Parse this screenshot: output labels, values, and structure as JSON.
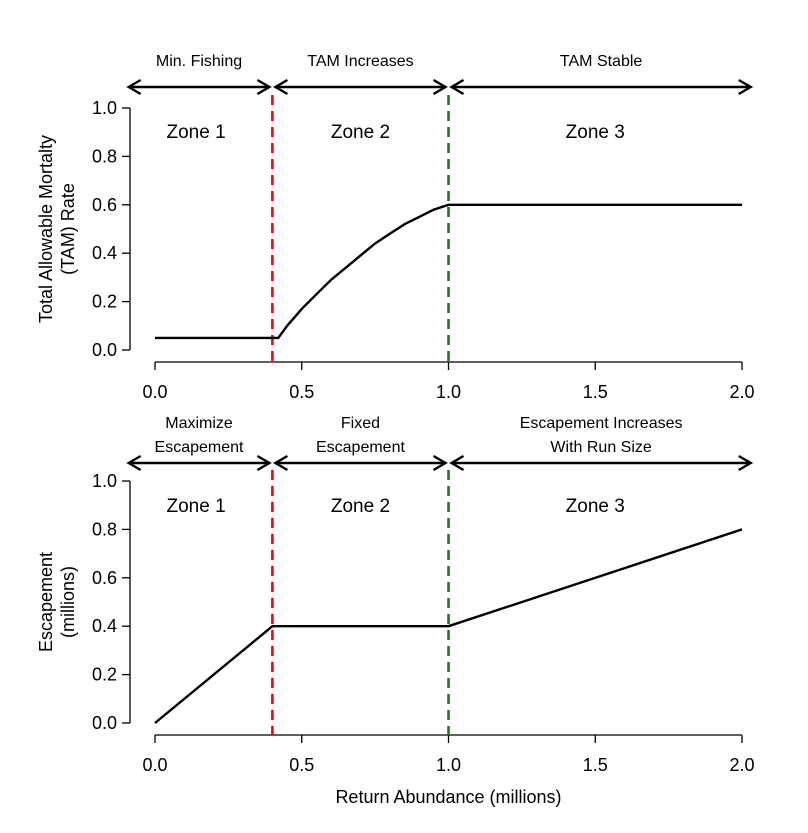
{
  "chart_data": [
    {
      "type": "line",
      "xlabel": "",
      "ylabel_lines": [
        "Total Allowable Mortalty",
        "(TAM) Rate"
      ],
      "xlim": [
        0,
        2
      ],
      "ylim": [
        0,
        1
      ],
      "x_ticks": [
        0,
        0.5,
        1,
        1.5,
        2
      ],
      "x_tick_labels": [
        "0.0",
        "0.5",
        "1.0",
        "1.5",
        "2.0"
      ],
      "y_ticks": [
        0,
        0.2,
        0.4,
        0.6,
        0.8,
        1
      ],
      "y_tick_labels": [
        "0.0",
        "0.2",
        "0.4",
        "0.6",
        "0.8",
        "1.0"
      ],
      "series": [
        {
          "x": [
            0,
            0.1,
            0.2,
            0.3,
            0.4,
            0.42,
            0.45,
            0.5,
            0.55,
            0.6,
            0.65,
            0.7,
            0.75,
            0.8,
            0.85,
            0.9,
            0.95,
            1.0,
            1.5,
            2.0
          ],
          "y": [
            0.05,
            0.05,
            0.05,
            0.05,
            0.05,
            0.05,
            0.1,
            0.17,
            0.23,
            0.29,
            0.34,
            0.39,
            0.44,
            0.48,
            0.52,
            0.55,
            0.58,
            0.6,
            0.6,
            0.6
          ]
        }
      ],
      "vlines": [
        {
          "x": 0.4,
          "color": "#ff0000"
        },
        {
          "x": 1.0,
          "color": "#1a7a1a"
        }
      ],
      "zones": [
        {
          "label": "Zone 1",
          "x": 0.14
        },
        {
          "label": "Zone 2",
          "x": 0.7
        },
        {
          "label": "Zone 3",
          "x": 1.5
        }
      ],
      "arrows": [
        {
          "from": -0.1,
          "to": 0.4,
          "label_lines": [
            "Min. Fishing"
          ]
        },
        {
          "from": 0.4,
          "to": 1.0,
          "label_lines": [
            "TAM Increases"
          ]
        },
        {
          "from": 1.0,
          "to": 2.04,
          "label_lines": [
            "TAM Stable"
          ]
        }
      ]
    },
    {
      "type": "line",
      "xlabel": "Return Abundance (millions)",
      "ylabel_lines": [
        "Escapement",
        "(millions)"
      ],
      "xlim": [
        0,
        2
      ],
      "ylim": [
        0,
        1
      ],
      "x_ticks": [
        0,
        0.5,
        1,
        1.5,
        2
      ],
      "x_tick_labels": [
        "0.0",
        "0.5",
        "1.0",
        "1.5",
        "2.0"
      ],
      "y_ticks": [
        0,
        0.2,
        0.4,
        0.6,
        0.8,
        1
      ],
      "y_tick_labels": [
        "0.0",
        "0.2",
        "0.4",
        "0.6",
        "0.8",
        "1.0"
      ],
      "series": [
        {
          "x": [
            0,
            0.4,
            1.0,
            2.0
          ],
          "y": [
            0,
            0.4,
            0.4,
            0.8
          ]
        }
      ],
      "vlines": [
        {
          "x": 0.4,
          "color": "#ff0000"
        },
        {
          "x": 1.0,
          "color": "#1a7a1a"
        }
      ],
      "zones": [
        {
          "label": "Zone 1",
          "x": 0.14
        },
        {
          "label": "Zone 2",
          "x": 0.7
        },
        {
          "label": "Zone 3",
          "x": 1.5
        }
      ],
      "arrows": [
        {
          "from": -0.1,
          "to": 0.4,
          "label_lines": [
            "Maximize",
            "Escapement"
          ]
        },
        {
          "from": 0.4,
          "to": 1.0,
          "label_lines": [
            "Fixed",
            "Escapement"
          ]
        },
        {
          "from": 1.0,
          "to": 2.04,
          "label_lines": [
            "Escapement Increases",
            "With Run Size"
          ]
        }
      ]
    }
  ]
}
